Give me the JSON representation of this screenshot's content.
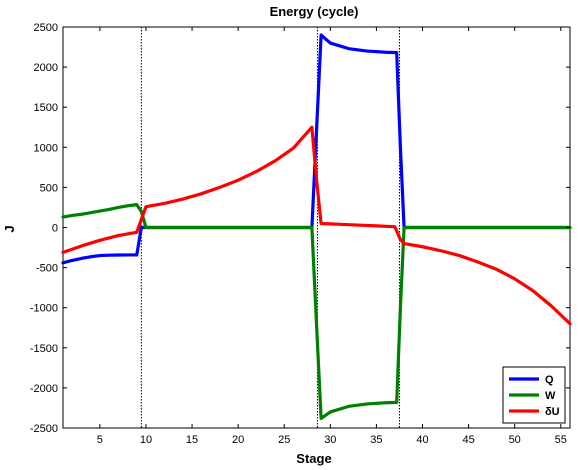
{
  "chart_data": {
    "type": "line",
    "title": "Energy (cycle)",
    "xlabel": "Stage",
    "ylabel": "J",
    "xlim": [
      1,
      56
    ],
    "ylim": [
      -2500,
      2500
    ],
    "xticks": [
      5,
      10,
      15,
      20,
      25,
      30,
      35,
      40,
      45,
      50,
      55
    ],
    "xtick_labels": [
      "5",
      "10",
      "15",
      "20",
      "25",
      "30",
      "35",
      "40",
      "45",
      "50",
      "55"
    ],
    "yticks": [
      -2500,
      -2000,
      -1500,
      -1000,
      -500,
      0,
      500,
      1000,
      1500,
      2000,
      2500
    ],
    "ytick_labels": [
      "-2500",
      "-2000",
      "-1500",
      "-1000",
      "-500",
      "0",
      "500",
      "1000",
      "1500",
      "2000",
      "2500"
    ],
    "grid": false,
    "legend_position": "bottom-right",
    "vertical_lines_x": [
      9.5,
      28.6,
      37.5
    ],
    "series": [
      {
        "name": "Q",
        "color": "#0000ff",
        "x": [
          1,
          2,
          3,
          4,
          5,
          6,
          7,
          8,
          9,
          9.5,
          10,
          11,
          15,
          20,
          25,
          28,
          28.5,
          29,
          30,
          32,
          34,
          36,
          37.2,
          37.6,
          38,
          40,
          45,
          50,
          56
        ],
        "y": [
          -440,
          -410,
          -385,
          -365,
          -350,
          -345,
          -343,
          -342,
          -342,
          0,
          0,
          0,
          0,
          0,
          0,
          0,
          1200,
          2400,
          2300,
          2230,
          2200,
          2185,
          2180,
          1000,
          0,
          0,
          0,
          0,
          0
        ]
      },
      {
        "name": "W",
        "color": "#008000",
        "x": [
          1,
          2,
          3,
          4,
          5,
          6,
          7,
          8,
          9,
          9.5,
          10,
          11,
          15,
          20,
          25,
          28,
          28.5,
          29,
          30,
          32,
          34,
          36,
          37.2,
          37.6,
          38,
          40,
          45,
          50,
          56
        ],
        "y": [
          130,
          150,
          165,
          185,
          205,
          225,
          250,
          270,
          285,
          200,
          0,
          0,
          0,
          0,
          0,
          0,
          -1200,
          -2380,
          -2300,
          -2230,
          -2200,
          -2185,
          -2180,
          -1000,
          0,
          0,
          0,
          0,
          0
        ]
      },
      {
        "name": "δU",
        "color": "#ff0000",
        "x": [
          1,
          3,
          5,
          7,
          9,
          9.5,
          10,
          12,
          14,
          16,
          18,
          20,
          22,
          24,
          26,
          28,
          28.5,
          29,
          32,
          35,
          37,
          37.6,
          38,
          40,
          42,
          44,
          46,
          48,
          50,
          52,
          54,
          56
        ],
        "y": [
          -310,
          -230,
          -160,
          -100,
          -60,
          100,
          260,
          300,
          355,
          420,
          500,
          590,
          700,
          830,
          990,
          1250,
          600,
          50,
          35,
          20,
          10,
          -150,
          -200,
          -240,
          -290,
          -350,
          -430,
          -520,
          -640,
          -790,
          -980,
          -1200
        ]
      }
    ]
  }
}
